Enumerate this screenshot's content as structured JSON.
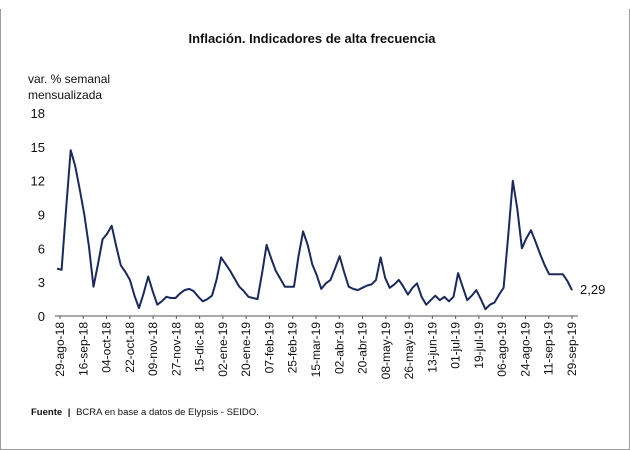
{
  "chart_data": {
    "type": "line",
    "title": "Inflación. Indicadores de alta frecuencia",
    "ylabel_line1": "var. % semanal",
    "ylabel_line2": "mensualizada",
    "ylim": [
      0,
      18
    ],
    "yticks": [
      "0",
      "3",
      "6",
      "9",
      "12",
      "15",
      "18"
    ],
    "xtick_labels": [
      "29-ago-18",
      "16-sep-18",
      "04-oct-18",
      "22-oct-18",
      "09-nov-18",
      "27-nov-18",
      "15-dic-18",
      "02-ene-19",
      "20-ene-19",
      "07-feb-19",
      "25-feb-19",
      "15-mar-19",
      "02-abr-19",
      "20-abr-19",
      "08-may-19",
      "26-may-19",
      "13-jun-19",
      "01-jul-19",
      "19-jul-19",
      "06-ago-19",
      "24-ago-19",
      "11-sep-19",
      "29-sep-19"
    ],
    "end_label": "2,29",
    "line_color": "#1b2a5c",
    "grid": false,
    "series": [
      {
        "values": [
          4.2,
          4.1,
          9.5,
          14.7,
          13.3,
          11.2,
          9.0,
          6.2,
          2.6,
          4.6,
          6.8,
          7.3,
          8.0,
          6.2,
          4.5,
          3.9,
          3.2,
          1.8,
          0.7,
          2.0,
          3.5,
          2.2,
          1.0,
          1.3,
          1.7,
          1.6,
          1.6,
          2.0,
          2.3,
          2.4,
          2.2,
          1.7,
          1.3,
          1.5,
          1.8,
          3.2,
          5.2,
          4.6,
          4.0,
          3.3,
          2.6,
          2.2,
          1.7,
          1.6,
          1.5,
          3.8,
          6.3,
          5.1,
          4.0,
          3.3,
          2.6,
          2.6,
          2.6,
          5.3,
          7.5,
          6.3,
          4.6,
          3.6,
          2.4,
          2.9,
          3.2,
          4.2,
          5.3,
          3.9,
          2.6,
          2.4,
          2.3,
          2.5,
          2.7,
          2.8,
          3.2,
          5.2,
          3.4,
          2.5,
          2.8,
          3.2,
          2.6,
          1.9,
          2.5,
          2.9,
          1.7,
          1.0,
          1.4,
          1.8,
          1.4,
          1.7,
          1.3,
          1.7,
          3.8,
          2.6,
          1.4,
          1.8,
          2.3,
          1.5,
          0.6,
          1.0,
          1.2,
          1.9,
          2.5,
          7.1,
          12.0,
          9.5,
          6.0,
          6.9,
          7.6,
          6.6,
          5.5,
          4.5,
          3.7,
          3.7,
          3.7,
          3.7,
          3.1,
          2.29
        ]
      }
    ]
  },
  "source": {
    "label": "Fuente",
    "separator": "|",
    "text": "BCRA en base a datos de Elypsis - SEIDO."
  }
}
